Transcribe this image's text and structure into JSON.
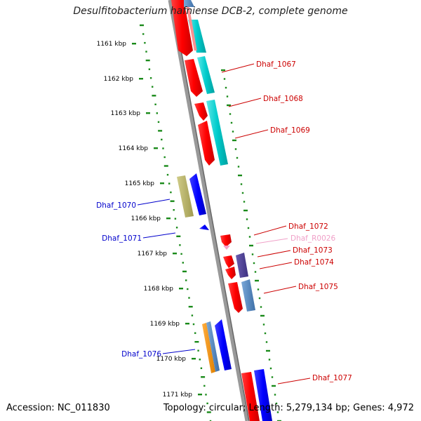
{
  "title": "Desulfitobacterium hafniense DCB-2, complete genome",
  "accession_label": "Accession: NC_011830",
  "summary_label": "Topology: circular; Length: 5,279,134 bp; Genes: 4,972",
  "colors": {
    "backbone": "#888888",
    "scale_dots": "#1a8a1a",
    "label_red": "#cc0000",
    "label_blue": "#0000cc",
    "label_pink": "#f0a0c8"
  },
  "scale_ticks": [
    "1161 kbp",
    "1162 kbp",
    "1163 kbp",
    "1164 kbp",
    "1165 kbp",
    "1166 kbp",
    "1167 kbp",
    "1168 kbp",
    "1169 kbp",
    "1170 kbp",
    "1171 kbp"
  ],
  "gene_labels": [
    {
      "text": "Dhaf_1067",
      "color": "red"
    },
    {
      "text": "Dhaf_1068",
      "color": "red"
    },
    {
      "text": "Dhaf_1069",
      "color": "red"
    },
    {
      "text": "Dhaf_1070",
      "color": "blue"
    },
    {
      "text": "Dhaf_1071",
      "color": "blue"
    },
    {
      "text": "Dhaf_1072",
      "color": "red"
    },
    {
      "text": "Dhaf_R0026",
      "color": "pink"
    },
    {
      "text": "Dhaf_1073",
      "color": "red"
    },
    {
      "text": "Dhaf_1074",
      "color": "red"
    },
    {
      "text": "Dhaf_1075",
      "color": "red"
    },
    {
      "text": "Dhaf_1076",
      "color": "blue"
    },
    {
      "text": "Dhaf_1077",
      "color": "red"
    }
  ]
}
